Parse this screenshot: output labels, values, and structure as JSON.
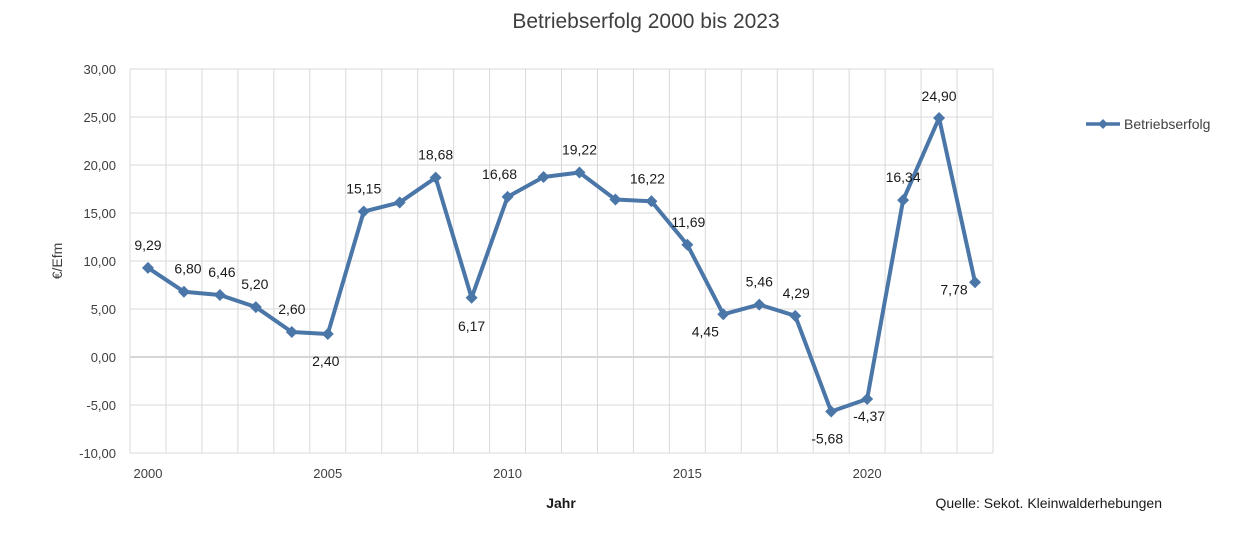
{
  "chart_data": {
    "type": "line",
    "title": "Betriebserfolg 2000 bis 2023",
    "xlabel": "Jahr",
    "ylabel": "€/Efm",
    "source": "Quelle: Sekot. Kleinwalderhebungen",
    "xlim": [
      2000,
      2023
    ],
    "ylim": [
      -10,
      30
    ],
    "x_ticks": [
      "2000",
      "2005",
      "2010",
      "2015",
      "2020"
    ],
    "y_ticks": [
      "30,00",
      "25,00",
      "20,00",
      "15,00",
      "10,00",
      "5,00",
      "0,00",
      "-5,00",
      "-10,00"
    ],
    "grid": true,
    "legend_position": "right",
    "x": [
      2000,
      2001,
      2002,
      2003,
      2004,
      2005,
      2006,
      2007,
      2008,
      2009,
      2010,
      2011,
      2012,
      2013,
      2014,
      2015,
      2016,
      2017,
      2018,
      2019,
      2020,
      2021,
      2022,
      2023
    ],
    "series": [
      {
        "name": "Betriebserfolg",
        "color": "#4a76a8",
        "values": [
          9.29,
          6.8,
          6.46,
          5.2,
          2.6,
          2.4,
          15.15,
          16.1,
          18.68,
          6.17,
          16.68,
          18.75,
          19.22,
          16.4,
          16.22,
          11.69,
          4.45,
          5.46,
          4.29,
          -5.68,
          -4.37,
          16.34,
          24.9,
          7.78
        ],
        "labels": [
          "9,29",
          "6,80",
          "6,46",
          "5,20",
          "2,60",
          "2,40",
          "15,15",
          "",
          "18,68",
          "6,17",
          "16,68",
          "",
          "19,22",
          "",
          "16,22",
          "11,69",
          "4,45",
          "5,46",
          "4,29",
          "-5,68",
          "-4,37",
          "16,34",
          "24,90",
          "7,78"
        ]
      }
    ]
  }
}
